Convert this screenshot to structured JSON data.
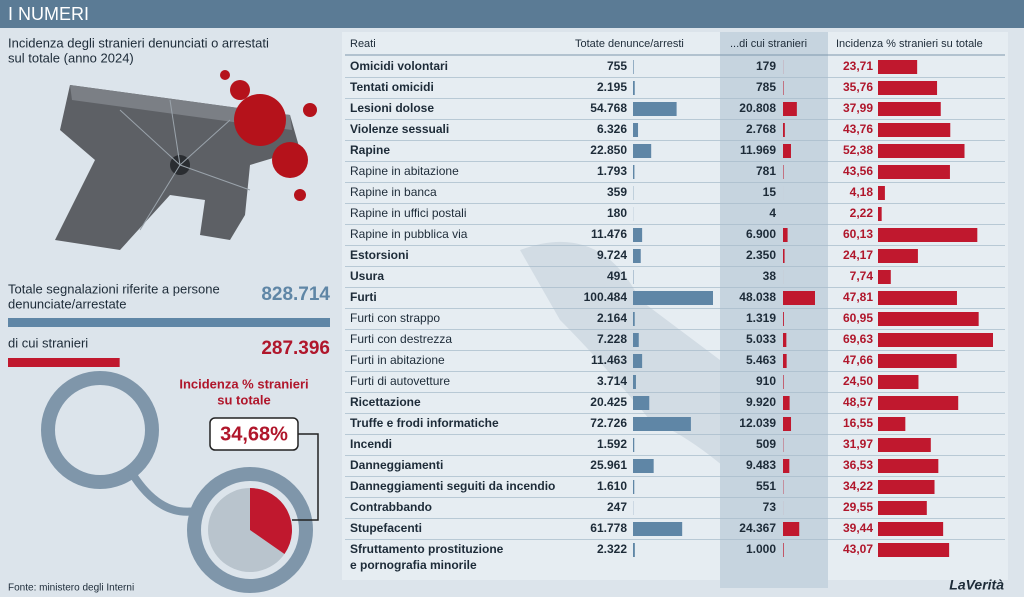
{
  "header": {
    "title": "I NUMERI"
  },
  "subtitle": [
    "Incidenza degli stranieri denunciati o arrestati",
    "sul totale (anno 2024)"
  ],
  "totals": [
    {
      "label": [
        "Totale segnalazioni riferite a persone",
        "denunciate/arrestate"
      ],
      "value": {
        "value": 828714,
        "label": "828.714"
      }
    },
    {
      "label": [
        "di cui stranieri"
      ],
      "value": {
        "value": 287396,
        "label": "287.396"
      }
    }
  ],
  "incidence": {
    "label": [
      "Incidenza % stranieri",
      "su totale"
    ],
    "value": {
      "value": 34.68,
      "label": "34,68%"
    }
  },
  "table": {
    "columns": [
      "Reati",
      "Totate denunce/arresti",
      "...di cui stranieri",
      "Incidenza % stranieri su totale"
    ],
    "rows": [
      {
        "crime": [
          "Omicidi  volontari"
        ],
        "bold": true,
        "total": 755,
        "foreign": 179,
        "pct": {
          "value": 23.71,
          "label": "23,71"
        }
      },
      {
        "crime": [
          "Tentati omicidi"
        ],
        "bold": true,
        "total": {
          "value": 2195,
          "label": "2.195"
        },
        "foreign": 785,
        "pct": {
          "value": 35.76,
          "label": "35,76"
        }
      },
      {
        "crime": [
          "Lesioni dolose"
        ],
        "bold": true,
        "total": {
          "value": 54768,
          "label": "54.768"
        },
        "foreign": {
          "value": 20808,
          "label": "20.808"
        },
        "pct": {
          "value": 37.99,
          "label": "37,99"
        }
      },
      {
        "crime": [
          "Violenze sessuali"
        ],
        "bold": true,
        "total": {
          "value": 6326,
          "label": "6.326"
        },
        "foreign": {
          "value": 2768,
          "label": "2.768"
        },
        "pct": {
          "value": 43.76,
          "label": "43,76"
        }
      },
      {
        "crime": [
          "Rapine"
        ],
        "bold": true,
        "total": {
          "value": 22850,
          "label": "22.850"
        },
        "foreign": {
          "value": 11969,
          "label": "11.969"
        },
        "pct": {
          "value": 52.38,
          "label": "52,38"
        }
      },
      {
        "crime": [
          "Rapine in abitazione"
        ],
        "bold": false,
        "total": {
          "value": 1793,
          "label": "1.793"
        },
        "foreign": 781,
        "pct": {
          "value": 43.56,
          "label": "43,56"
        }
      },
      {
        "crime": [
          "Rapine in banca"
        ],
        "bold": false,
        "total": 359,
        "foreign": 15,
        "pct": {
          "value": 4.18,
          "label": "4,18"
        }
      },
      {
        "crime": [
          "Rapine in uffici postali"
        ],
        "bold": false,
        "total": 180,
        "foreign": 4,
        "pct": {
          "value": 2.22,
          "label": "2,22"
        }
      },
      {
        "crime": [
          "Rapine in pubblica via"
        ],
        "bold": false,
        "total": {
          "value": 11476,
          "label": "11.476"
        },
        "foreign": {
          "value": 6900,
          "label": "6.900"
        },
        "pct": {
          "value": 60.13,
          "label": "60,13"
        }
      },
      {
        "crime": [
          "Estorsioni"
        ],
        "bold": true,
        "total": {
          "value": 9724,
          "label": "9.724"
        },
        "foreign": {
          "value": 2350,
          "label": "2.350"
        },
        "pct": {
          "value": 24.17,
          "label": "24,17"
        }
      },
      {
        "crime": [
          "Usura"
        ],
        "bold": true,
        "total": 491,
        "foreign": 38,
        "pct": {
          "value": 7.74,
          "label": "7,74"
        }
      },
      {
        "crime": [
          "Furti"
        ],
        "bold": true,
        "total": {
          "value": 100484,
          "label": "100.484"
        },
        "foreign": {
          "value": 48038,
          "label": "48.038"
        },
        "pct": {
          "value": 47.81,
          "label": "47,81"
        }
      },
      {
        "crime": [
          "Furti con strappo"
        ],
        "bold": false,
        "total": {
          "value": 2164,
          "label": "2.164"
        },
        "foreign": {
          "value": 1319,
          "label": "1.319"
        },
        "pct": {
          "value": 60.95,
          "label": "60,95"
        }
      },
      {
        "crime": [
          "Furti con destrezza"
        ],
        "bold": false,
        "total": {
          "value": 7228,
          "label": "7.228"
        },
        "foreign": {
          "value": 5033,
          "label": "5.033"
        },
        "pct": {
          "value": 69.63,
          "label": "69,63"
        }
      },
      {
        "crime": [
          "Furti in abitazione"
        ],
        "bold": false,
        "total": {
          "value": 11463,
          "label": "11.463"
        },
        "foreign": {
          "value": 5463,
          "label": "5.463"
        },
        "pct": {
          "value": 47.66,
          "label": "47,66"
        }
      },
      {
        "crime": [
          "Furti di autovetture"
        ],
        "bold": false,
        "total": {
          "value": 3714,
          "label": "3.714"
        },
        "foreign": 910,
        "pct": {
          "value": 24.5,
          "label": "24,50"
        }
      },
      {
        "crime": [
          "Ricettazione"
        ],
        "bold": true,
        "total": {
          "value": 20425,
          "label": "20.425"
        },
        "foreign": {
          "value": 9920,
          "label": "9.920"
        },
        "pct": {
          "value": 48.57,
          "label": "48,57"
        }
      },
      {
        "crime": [
          "Truffe e frodi informatiche"
        ],
        "bold": true,
        "total": {
          "value": 72726,
          "label": "72.726"
        },
        "foreign": {
          "value": 12039,
          "label": "12.039"
        },
        "pct": {
          "value": 16.55,
          "label": "16,55"
        }
      },
      {
        "crime": [
          "Incendi"
        ],
        "bold": true,
        "total": {
          "value": 1592,
          "label": "1.592"
        },
        "foreign": 509,
        "pct": {
          "value": 31.97,
          "label": "31,97"
        }
      },
      {
        "crime": [
          "Danneggiamenti"
        ],
        "bold": true,
        "total": {
          "value": 25961,
          "label": "25.961"
        },
        "foreign": {
          "value": 9483,
          "label": "9.483"
        },
        "pct": {
          "value": 36.53,
          "label": "36,53"
        }
      },
      {
        "crime": [
          "Danneggiamenti seguiti da incendio"
        ],
        "bold": true,
        "total": {
          "value": 1610,
          "label": "1.610"
        },
        "foreign": 551,
        "pct": {
          "value": 34.22,
          "label": "34,22"
        }
      },
      {
        "crime": [
          "Contrabbando"
        ],
        "bold": true,
        "total": 247,
        "foreign": 73,
        "pct": {
          "value": 29.55,
          "label": "29,55"
        }
      },
      {
        "crime": [
          "Stupefacenti"
        ],
        "bold": true,
        "total": {
          "value": 61778,
          "label": "61.778"
        },
        "foreign": {
          "value": 24367,
          "label": "24.367"
        },
        "pct": {
          "value": 39.44,
          "label": "39,44"
        }
      },
      {
        "crime": [
          "Sfruttamento prostituzione",
          "e pornografia minorile"
        ],
        "bold": true,
        "total": {
          "value": 2322,
          "label": "2.322"
        },
        "foreign": {
          "value": 1000,
          "label": "1.000"
        },
        "pct": {
          "value": 43.07,
          "label": "43,07"
        }
      }
    ]
  },
  "footer": {
    "source": "Fonte: ministero degli Interni",
    "logo": "LaVerità"
  }
}
